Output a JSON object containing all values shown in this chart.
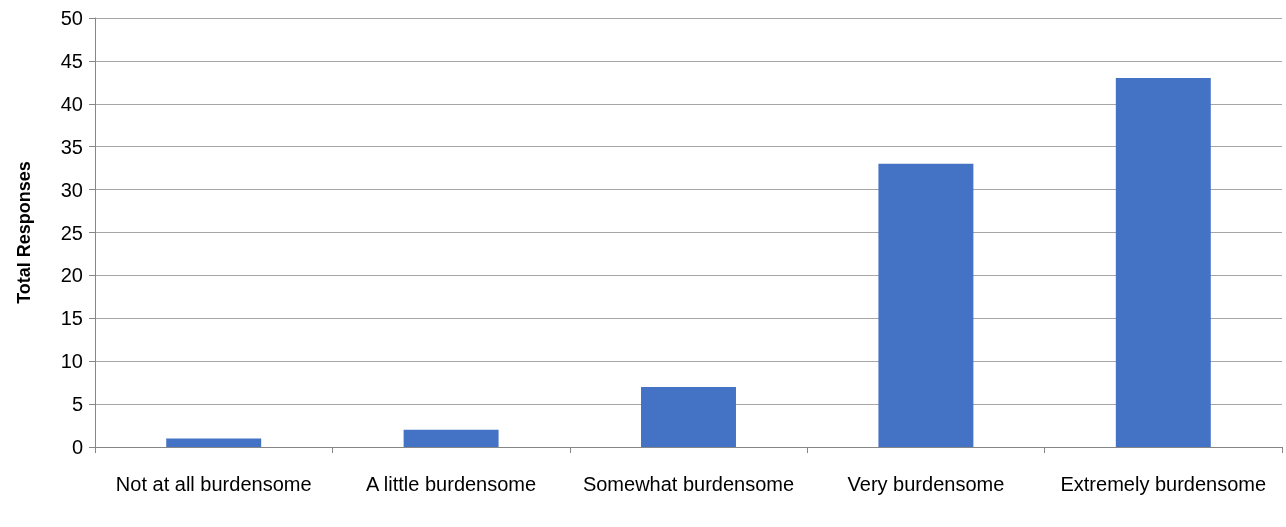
{
  "chart_data": {
    "type": "bar",
    "ylabel": "Total Responses",
    "categories": [
      "Not at all burdensome",
      "A little burdensome",
      "Somewhat burdensome",
      "Very burdensome",
      "Extremely burdensome"
    ],
    "values": [
      1,
      2,
      7,
      33,
      43
    ],
    "color": "#4472c4",
    "ylim": [
      0,
      50
    ],
    "yticks": [
      0,
      5,
      10,
      15,
      20,
      25,
      30,
      35,
      40,
      45,
      50
    ],
    "grid": "y"
  }
}
